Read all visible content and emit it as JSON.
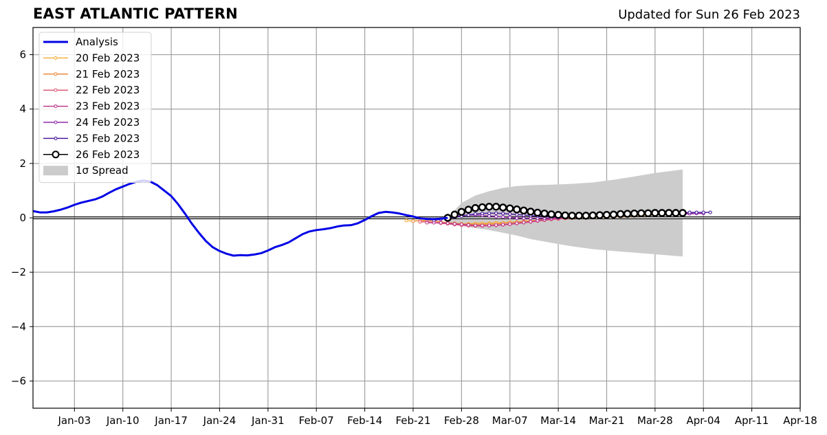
{
  "chart_data": {
    "type": "line",
    "title": "EAST ATLANTIC PATTERN",
    "subtitle": "Updated for Sun 26 Feb 2023",
    "xlabel": "",
    "ylabel": "",
    "x_ticks": [
      "Jan-03",
      "Jan-10",
      "Jan-17",
      "Jan-24",
      "Jan-31",
      "Feb-07",
      "Feb-14",
      "Feb-21",
      "Feb-28",
      "Mar-07",
      "Mar-14",
      "Mar-21",
      "Mar-28",
      "Apr-04",
      "Apr-11",
      "Apr-18"
    ],
    "y_ticks": [
      6,
      4,
      2,
      0,
      -2,
      -4,
      -6
    ],
    "xlim": [
      "2022-12-28",
      "2023-04-18"
    ],
    "ylim": [
      -7,
      7
    ],
    "grid": true,
    "legend_position": "top-left",
    "analysis": {
      "name": "Analysis",
      "color": "#0000e6",
      "x": [
        "2022-12-28",
        "2022-12-29",
        "2022-12-30",
        "2022-12-31",
        "2023-01-01",
        "2023-01-02",
        "2023-01-03",
        "2023-01-04",
        "2023-01-05",
        "2023-01-06",
        "2023-01-07",
        "2023-01-08",
        "2023-01-09",
        "2023-01-10",
        "2023-01-11",
        "2023-01-12",
        "2023-01-13",
        "2023-01-14",
        "2023-01-15",
        "2023-01-16",
        "2023-01-17",
        "2023-01-18",
        "2023-01-19",
        "2023-01-20",
        "2023-01-21",
        "2023-01-22",
        "2023-01-23",
        "2023-01-24",
        "2023-01-25",
        "2023-01-26",
        "2023-01-27",
        "2023-01-28",
        "2023-01-29",
        "2023-01-30",
        "2023-01-31",
        "2023-02-01",
        "2023-02-02",
        "2023-02-03",
        "2023-02-04",
        "2023-02-05",
        "2023-02-06",
        "2023-02-07",
        "2023-02-08",
        "2023-02-09",
        "2023-02-10",
        "2023-02-11",
        "2023-02-12",
        "2023-02-13",
        "2023-02-14",
        "2023-02-15",
        "2023-02-16",
        "2023-02-17",
        "2023-02-18",
        "2023-02-19",
        "2023-02-20",
        "2023-02-21",
        "2023-02-22",
        "2023-02-23",
        "2023-02-24",
        "2023-02-25",
        "2023-02-26"
      ],
      "y": [
        0.25,
        0.2,
        0.2,
        0.24,
        0.3,
        0.38,
        0.48,
        0.56,
        0.62,
        0.68,
        0.78,
        0.92,
        1.05,
        1.15,
        1.25,
        1.33,
        1.37,
        1.33,
        1.2,
        1.0,
        0.8,
        0.5,
        0.15,
        -0.22,
        -0.55,
        -0.85,
        -1.08,
        -1.22,
        -1.32,
        -1.39,
        -1.37,
        -1.38,
        -1.35,
        -1.3,
        -1.2,
        -1.08,
        -1.0,
        -0.9,
        -0.75,
        -0.6,
        -0.5,
        -0.45,
        -0.42,
        -0.38,
        -0.32,
        -0.28,
        -0.27,
        -0.2,
        -0.08,
        0.06,
        0.18,
        0.22,
        0.2,
        0.16,
        0.1,
        0.05,
        -0.02,
        -0.04,
        -0.05,
        -0.03,
        0.0
      ]
    },
    "forecasts": [
      {
        "name": "20 Feb 2023",
        "color": "#f5b041",
        "start": "2023-02-20",
        "y": [
          -0.1,
          -0.12,
          -0.1,
          -0.1,
          -0.12,
          -0.15,
          -0.18,
          -0.2,
          -0.22,
          -0.22,
          -0.2,
          -0.2,
          -0.2,
          -0.18,
          -0.18,
          -0.16,
          -0.15,
          -0.12,
          -0.1,
          -0.08,
          -0.06,
          -0.05,
          -0.03,
          -0.02,
          -0.01,
          0.0,
          0.0,
          0.01,
          0.02,
          0.03,
          0.04,
          0.05,
          0.06,
          0.07,
          0.08,
          0.09,
          0.1,
          0.11,
          0.12,
          0.12
        ]
      },
      {
        "name": "21 Feb 2023",
        "color": "#eb8a3c",
        "start": "2023-02-21",
        "y": [
          -0.12,
          -0.1,
          -0.1,
          -0.12,
          -0.15,
          -0.18,
          -0.2,
          -0.22,
          -0.24,
          -0.24,
          -0.24,
          -0.23,
          -0.22,
          -0.2,
          -0.18,
          -0.16,
          -0.14,
          -0.12,
          -0.1,
          -0.08,
          -0.06,
          -0.04,
          -0.02,
          0.0,
          0.01,
          0.02,
          0.03,
          0.04,
          0.05,
          0.06,
          0.07,
          0.08,
          0.09,
          0.1,
          0.11,
          0.12,
          0.13,
          0.14,
          0.15,
          0.15
        ]
      },
      {
        "name": "22 Feb 2023",
        "color": "#de5a78",
        "start": "2023-02-22",
        "y": [
          -0.15,
          -0.15,
          -0.18,
          -0.2,
          -0.22,
          -0.25,
          -0.27,
          -0.29,
          -0.3,
          -0.3,
          -0.29,
          -0.28,
          -0.26,
          -0.24,
          -0.21,
          -0.18,
          -0.15,
          -0.12,
          -0.09,
          -0.06,
          -0.04,
          -0.02,
          0.0,
          0.02,
          0.03,
          0.04,
          0.05,
          0.06,
          0.07,
          0.08,
          0.09,
          0.1,
          0.11,
          0.12,
          0.12,
          0.13,
          0.13,
          0.14,
          0.14,
          0.15
        ]
      },
      {
        "name": "23 Feb 2023",
        "color": "#c0398f",
        "start": "2023-02-23",
        "y": [
          -0.18,
          -0.18,
          -0.18,
          -0.2,
          -0.22,
          -0.24,
          -0.26,
          -0.28,
          -0.28,
          -0.28,
          -0.27,
          -0.25,
          -0.23,
          -0.2,
          -0.17,
          -0.14,
          -0.1,
          -0.07,
          -0.04,
          -0.02,
          0.0,
          0.02,
          0.03,
          0.05,
          0.06,
          0.07,
          0.08,
          0.09,
          0.1,
          0.11,
          0.12,
          0.13,
          0.13,
          0.14,
          0.14,
          0.15,
          0.15,
          0.16,
          0.16,
          0.16
        ]
      },
      {
        "name": "24 Feb 2023",
        "color": "#8e2aa8",
        "start": "2023-02-24",
        "y": [
          -0.1,
          -0.05,
          0.0,
          0.05,
          0.08,
          0.1,
          0.1,
          0.09,
          0.07,
          0.05,
          0.03,
          0.01,
          -0.01,
          -0.02,
          -0.02,
          -0.02,
          -0.01,
          0.0,
          0.01,
          0.02,
          0.03,
          0.04,
          0.05,
          0.06,
          0.07,
          0.08,
          0.09,
          0.1,
          0.11,
          0.12,
          0.12,
          0.13,
          0.13,
          0.14,
          0.14,
          0.15,
          0.15,
          0.15,
          0.16,
          0.16
        ]
      },
      {
        "name": "25 Feb 2023",
        "color": "#4b1a9e",
        "start": "2023-02-25",
        "y": [
          -0.05,
          -0.02,
          0.02,
          0.06,
          0.1,
          0.14,
          0.16,
          0.17,
          0.17,
          0.16,
          0.14,
          0.12,
          0.1,
          0.08,
          0.07,
          0.06,
          0.06,
          0.06,
          0.07,
          0.08,
          0.09,
          0.1,
          0.11,
          0.12,
          0.13,
          0.14,
          0.15,
          0.16,
          0.17,
          0.17,
          0.18,
          0.18,
          0.18,
          0.19,
          0.19,
          0.19,
          0.2,
          0.2,
          0.2,
          0.2
        ]
      },
      {
        "name": "26 Feb 2023",
        "color": "#000000",
        "start": "2023-02-26",
        "y": [
          0.0,
          0.12,
          0.22,
          0.3,
          0.36,
          0.39,
          0.41,
          0.41,
          0.38,
          0.35,
          0.31,
          0.27,
          0.23,
          0.19,
          0.16,
          0.13,
          0.11,
          0.09,
          0.08,
          0.08,
          0.08,
          0.09,
          0.1,
          0.11,
          0.12,
          0.14,
          0.15,
          0.16,
          0.17,
          0.17,
          0.18,
          0.18,
          0.18,
          0.18,
          0.18
        ]
      }
    ],
    "spread": {
      "name": "1σ Spread",
      "color": "#cccccc",
      "x": [
        "2023-02-26",
        "2023-02-27",
        "2023-02-28",
        "2023-03-02",
        "2023-03-04",
        "2023-03-06",
        "2023-03-08",
        "2023-03-10",
        "2023-03-13",
        "2023-03-16",
        "2023-03-19",
        "2023-03-22",
        "2023-03-25",
        "2023-03-28",
        "2023-04-01"
      ],
      "upper": [
        0.0,
        0.28,
        0.55,
        0.82,
        0.98,
        1.1,
        1.17,
        1.2,
        1.22,
        1.25,
        1.3,
        1.4,
        1.52,
        1.65,
        1.78
      ],
      "lower": [
        -0.2,
        -0.25,
        -0.3,
        -0.38,
        -0.45,
        -0.55,
        -0.65,
        -0.78,
        -0.92,
        -1.05,
        -1.15,
        -1.22,
        -1.28,
        -1.34,
        -1.42
      ]
    }
  }
}
